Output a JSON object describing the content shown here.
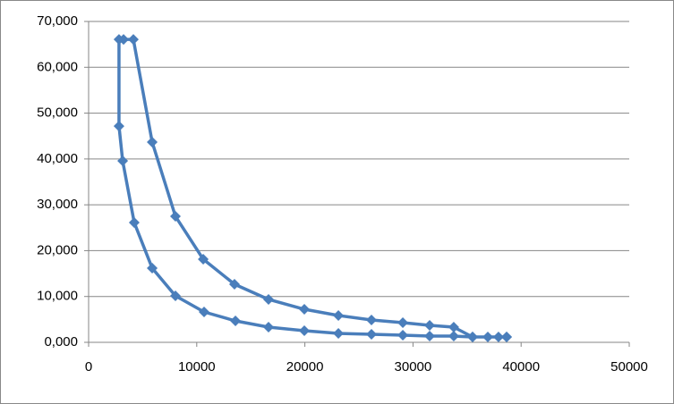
{
  "chart_data": {
    "type": "scatter-line",
    "series": [
      {
        "color": "#4a7ebb",
        "x": [
          38660,
          37910,
          36920,
          35510,
          33770,
          31540,
          29060,
          26160,
          23100,
          19950,
          16640,
          13580,
          10680,
          8030,
          5880,
          4220,
          3150,
          2810,
          2810,
          3230,
          4140,
          5880,
          8030,
          10600,
          13490,
          16640,
          19950,
          23100,
          26160,
          29060,
          31540,
          33770,
          35510,
          38660
        ],
        "values": [
          1170,
          1170,
          1170,
          1170,
          1360,
          1360,
          1560,
          1750,
          1950,
          2530,
          3310,
          4680,
          6630,
          10140,
          16180,
          26120,
          39570,
          47170,
          66080,
          66080,
          66080,
          43670,
          27490,
          18130,
          12670,
          9360,
          7210,
          5850,
          4870,
          4290,
          3700,
          3310,
          1170,
          1170
        ]
      }
    ],
    "xlim": [
      0,
      50000
    ],
    "xticks": [
      0,
      10000,
      20000,
      30000,
      40000,
      50000
    ],
    "ylim": [
      0,
      70000
    ],
    "yticks": [
      {
        "value": 0,
        "label": "0,000"
      },
      {
        "value": 10000,
        "label": "10,000"
      },
      {
        "value": 20000,
        "label": "20,000"
      },
      {
        "value": 30000,
        "label": "30,000"
      },
      {
        "value": 40000,
        "label": "40,000"
      },
      {
        "value": 50000,
        "label": "50,000"
      },
      {
        "value": 60000,
        "label": "60,000"
      },
      {
        "value": 70000,
        "label": "70,000"
      }
    ],
    "grid": true
  }
}
